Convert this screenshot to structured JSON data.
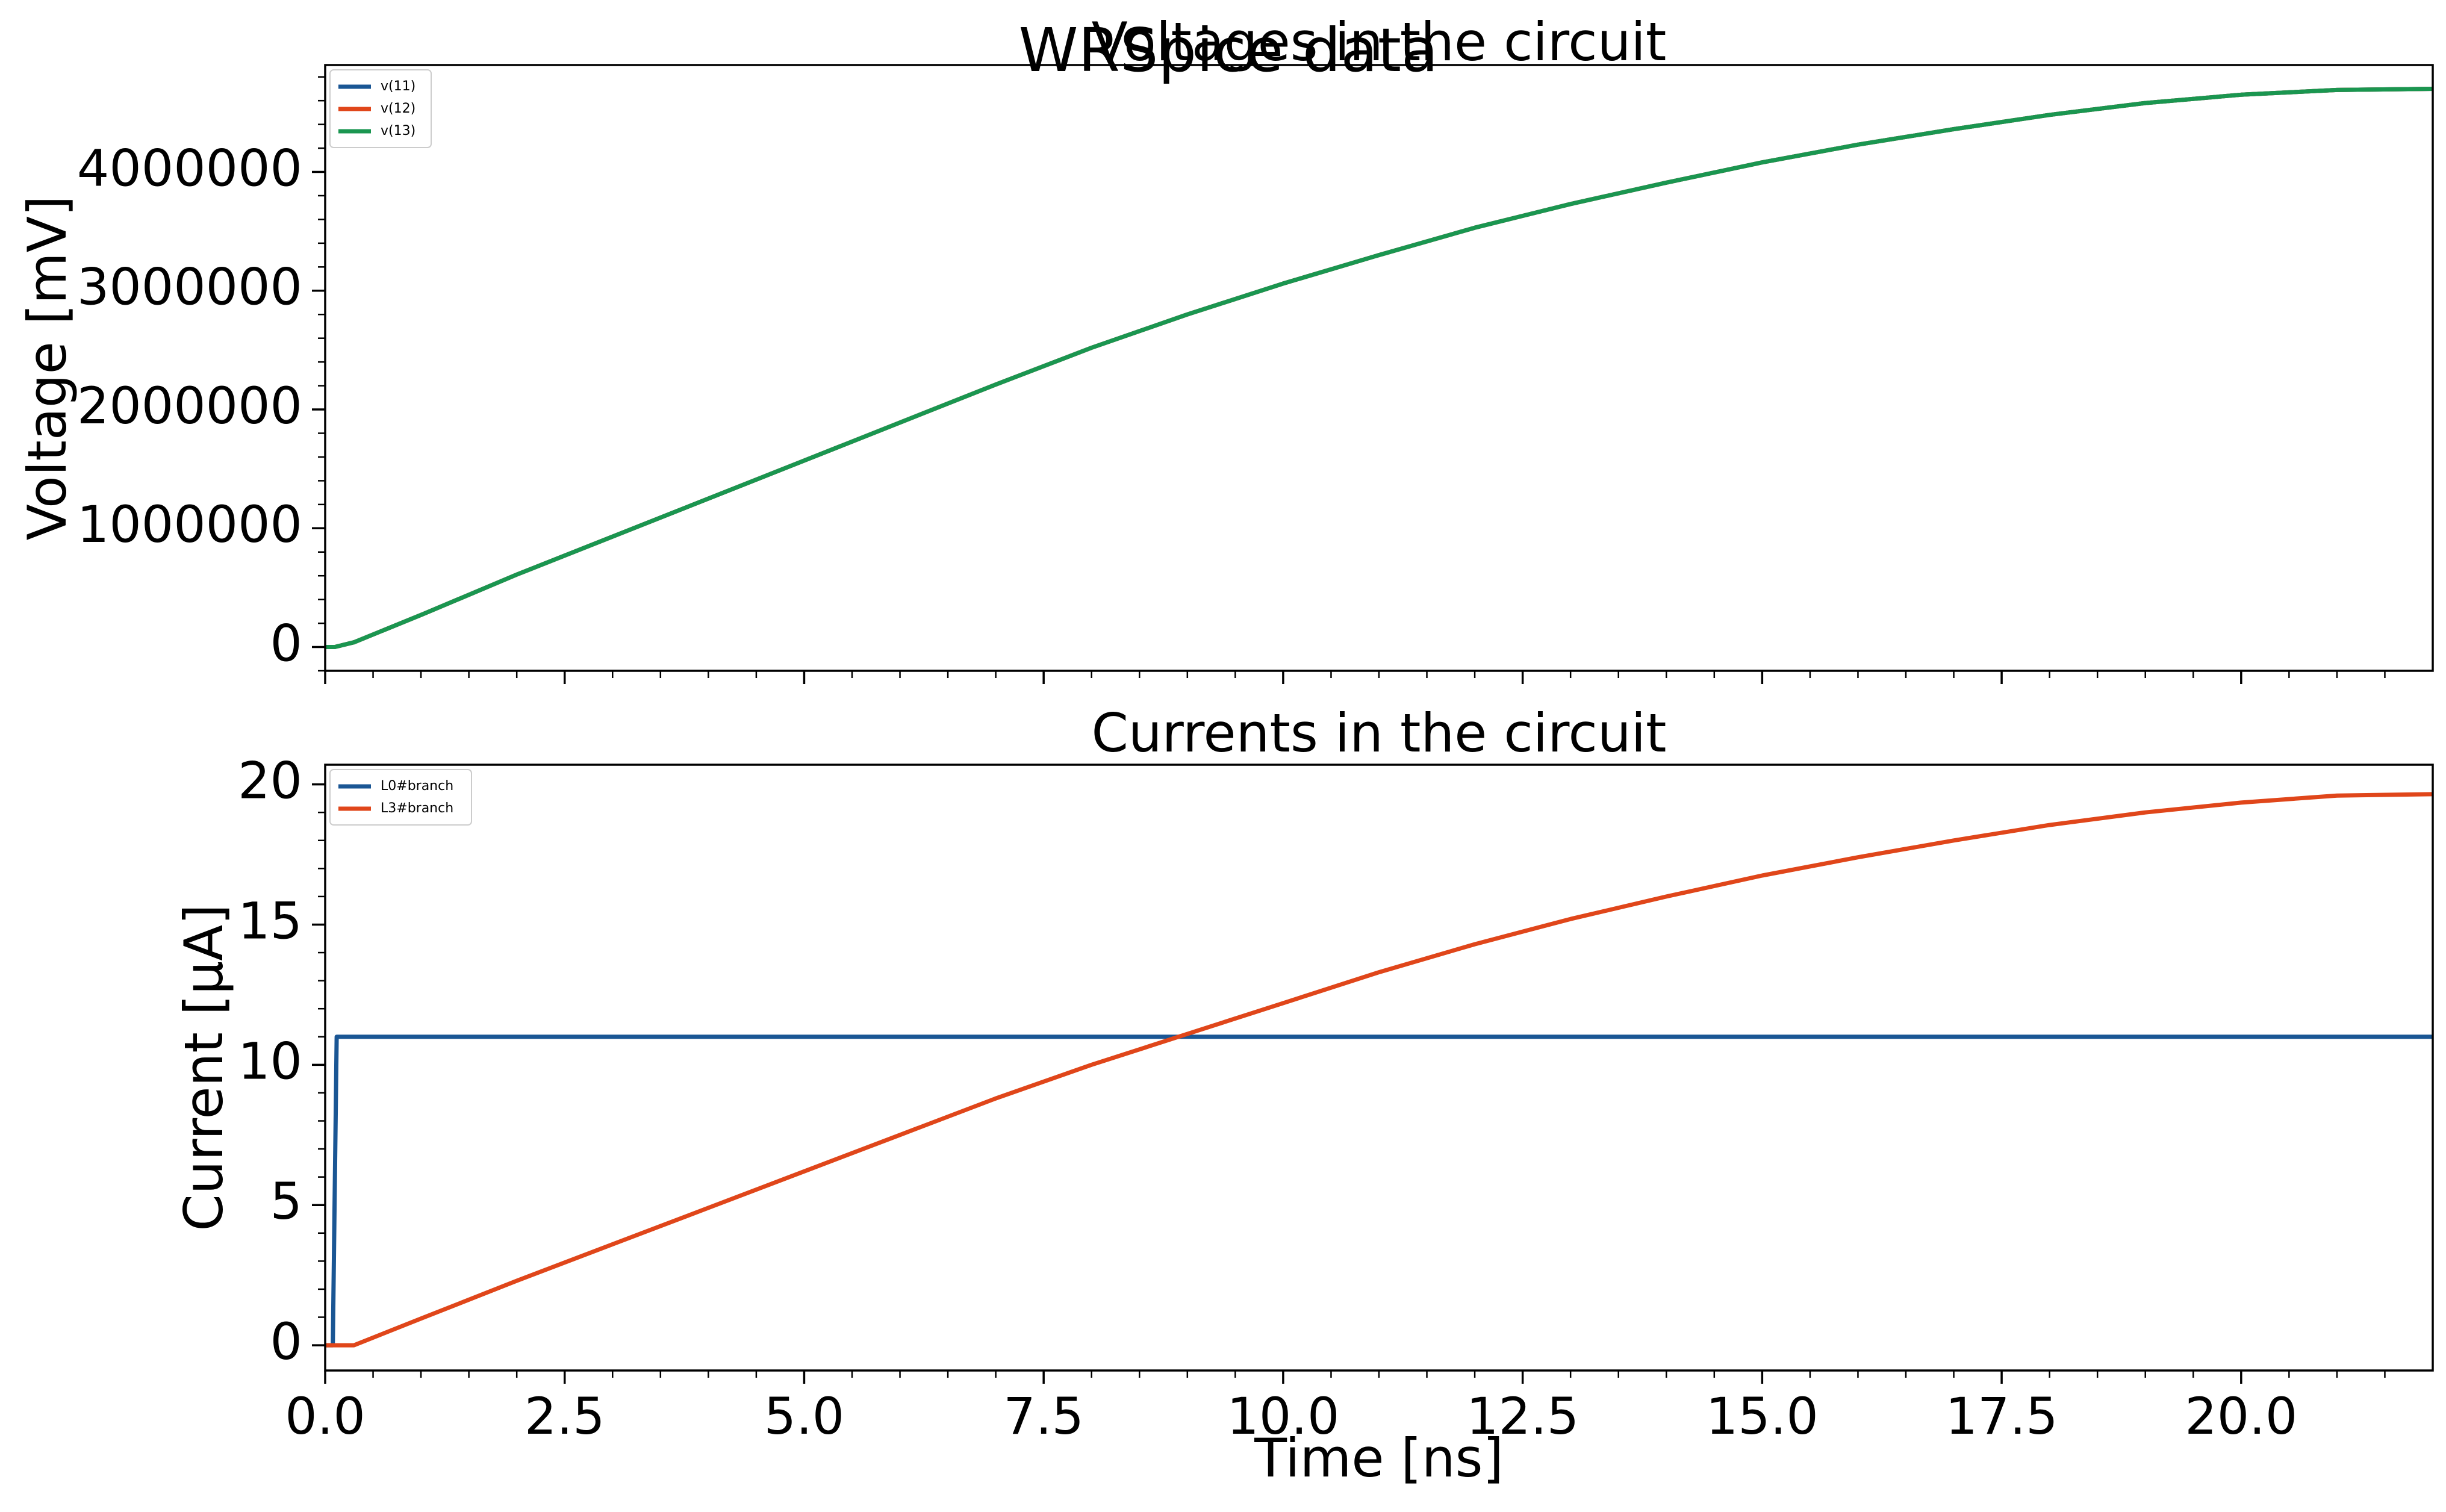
{
  "suptitle": "WRSpice data",
  "colors": {
    "blue": "#1a5694",
    "orange": "#e0461a",
    "green": "#1a9650",
    "axis": "#000000"
  },
  "chart_data": [
    {
      "type": "line",
      "title": "Voltages in the circuit",
      "xlabel": "",
      "ylabel": "Voltage [mV]",
      "xlim": [
        0,
        22
      ],
      "ylim": [
        -200000,
        4900000
      ],
      "yticks": [
        0,
        1000000,
        2000000,
        3000000,
        4000000
      ],
      "ytick_labels": [
        "0",
        "1000000",
        "2000000",
        "3000000",
        "4000000"
      ],
      "xticks": [
        0,
        2.5,
        5,
        7.5,
        10,
        12.5,
        15,
        17.5,
        20
      ],
      "xtick_labels": [
        "",
        "",
        "",
        "",
        "",
        "",
        "",
        "",
        ""
      ],
      "legend": "top-left",
      "series": [
        {
          "name": "v(11)",
          "color": "#1a5694",
          "x": [
            0,
            0.1,
            0.3,
            1,
            2,
            3,
            4,
            5,
            6,
            7,
            8,
            9,
            10,
            11,
            12,
            13,
            14,
            15,
            16,
            17,
            18,
            19,
            20,
            21,
            22
          ],
          "y": [
            0,
            0,
            40000,
            270000,
            610000,
            930000,
            1250000,
            1570000,
            1890000,
            2210000,
            2520000,
            2800000,
            3060000,
            3300000,
            3530000,
            3730000,
            3910000,
            4080000,
            4230000,
            4360000,
            4480000,
            4580000,
            4650000,
            4690000,
            4700000
          ]
        },
        {
          "name": "v(12)",
          "color": "#e0461a",
          "x": [
            0,
            0.1,
            0.3,
            1,
            2,
            3,
            4,
            5,
            6,
            7,
            8,
            9,
            10,
            11,
            12,
            13,
            14,
            15,
            16,
            17,
            18,
            19,
            20,
            21,
            22
          ],
          "y": [
            0,
            0,
            40000,
            270000,
            610000,
            930000,
            1250000,
            1570000,
            1890000,
            2210000,
            2520000,
            2800000,
            3060000,
            3300000,
            3530000,
            3730000,
            3910000,
            4080000,
            4230000,
            4360000,
            4480000,
            4580000,
            4650000,
            4690000,
            4700000
          ]
        },
        {
          "name": "v(13)",
          "color": "#1a9650",
          "x": [
            0,
            0.1,
            0.3,
            1,
            2,
            3,
            4,
            5,
            6,
            7,
            8,
            9,
            10,
            11,
            12,
            13,
            14,
            15,
            16,
            17,
            18,
            19,
            20,
            21,
            22
          ],
          "y": [
            0,
            0,
            40000,
            270000,
            610000,
            930000,
            1250000,
            1570000,
            1890000,
            2210000,
            2520000,
            2800000,
            3060000,
            3300000,
            3530000,
            3730000,
            3910000,
            4080000,
            4230000,
            4360000,
            4480000,
            4580000,
            4650000,
            4690000,
            4700000
          ]
        }
      ]
    },
    {
      "type": "line",
      "title": "Currents in the circuit",
      "xlabel": "Time [ns]",
      "ylabel": "Current [μA]",
      "xlim": [
        0,
        22
      ],
      "ylim": [
        -0.9,
        20.7
      ],
      "yticks": [
        0,
        5,
        10,
        15,
        20
      ],
      "ytick_labels": [
        "0",
        "5",
        "10",
        "15",
        "20"
      ],
      "xticks": [
        0,
        2.5,
        5,
        7.5,
        10,
        12.5,
        15,
        17.5,
        20
      ],
      "xtick_labels": [
        "0.0",
        "2.5",
        "5.0",
        "7.5",
        "10.0",
        "12.5",
        "15.0",
        "17.5",
        "20.0"
      ],
      "legend": "top-left",
      "series": [
        {
          "name": "L0#branch",
          "color": "#1a5694",
          "x": [
            0,
            0.08,
            0.12,
            22
          ],
          "y": [
            0,
            0,
            11,
            11
          ]
        },
        {
          "name": "L3#branch",
          "color": "#e0461a",
          "x": [
            0,
            0.3,
            1,
            2,
            3,
            4,
            5,
            6,
            7,
            8,
            9,
            10,
            11,
            12,
            13,
            14,
            15,
            16,
            17,
            18,
            19,
            20,
            21,
            22
          ],
          "y": [
            0,
            0,
            0.95,
            2.3,
            3.6,
            4.9,
            6.2,
            7.5,
            8.8,
            10.0,
            11.1,
            12.2,
            13.3,
            14.3,
            15.2,
            16.0,
            16.75,
            17.4,
            18.0,
            18.55,
            19.0,
            19.35,
            19.6,
            19.65
          ]
        }
      ]
    }
  ]
}
